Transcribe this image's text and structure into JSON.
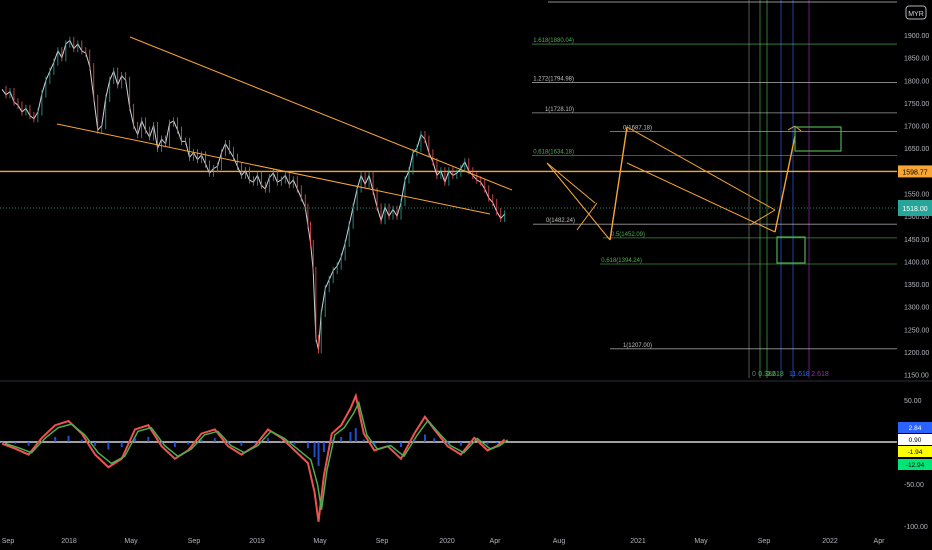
{
  "chart_data": [
    {
      "type": "line",
      "title": "",
      "currency_badge": "MYR",
      "price_axis": {
        "ylim": [
          1135,
          1980
        ],
        "ticks": [
          1150,
          1200,
          1250,
          1300,
          1350,
          1400,
          1450,
          1500,
          1550,
          1600,
          1650,
          1700,
          1750,
          1800,
          1850,
          1900
        ],
        "tick_labels": [
          "1150.00",
          "1200.00",
          "1250.00",
          "1300.00",
          "1350.00",
          "1400.00",
          "1450.00",
          "1500.00",
          "1550.00",
          "1600.00",
          "1650.00",
          "1700.00",
          "1750.00",
          "1800.00",
          "1850.00",
          "1900.00"
        ]
      },
      "time_axis": {
        "labels": [
          "Sep",
          "2018",
          "May",
          "Sep",
          "2019",
          "May",
          "Sep",
          "2020",
          "Apr",
          "Aug",
          "2021",
          "May",
          "Sep",
          "2022",
          "Apr"
        ]
      },
      "series": [
        {
          "values": [
            [
              0,
              1780
            ],
            [
              3,
              1768
            ],
            [
              6,
              1775
            ],
            [
              9,
              1752
            ],
            [
              12,
              1745
            ],
            [
              15,
              1730
            ],
            [
              18,
              1738
            ],
            [
              21,
              1722
            ],
            [
              24,
              1715
            ],
            [
              27,
              1730
            ],
            [
              30,
              1770
            ],
            [
              33,
              1800
            ],
            [
              36,
              1820
            ],
            [
              39,
              1840
            ],
            [
              42,
              1865
            ],
            [
              45,
              1850
            ],
            [
              48,
              1880
            ],
            [
              51,
              1888
            ],
            [
              54,
              1870
            ],
            [
              57,
              1880
            ],
            [
              60,
              1865
            ],
            [
              63,
              1860
            ],
            [
              66,
              1830
            ],
            [
              69,
              1760
            ],
            [
              72,
              1690
            ],
            [
              75,
              1700
            ],
            [
              78,
              1760
            ],
            [
              81,
              1800
            ],
            [
              84,
              1820
            ],
            [
              87,
              1790
            ],
            [
              90,
              1810
            ],
            [
              93,
              1800
            ],
            [
              96,
              1740
            ],
            [
              99,
              1700
            ],
            [
              102,
              1680
            ],
            [
              105,
              1710
            ],
            [
              108,
              1690
            ],
            [
              111,
              1675
            ],
            [
              114,
              1700
            ],
            [
              117,
              1650
            ],
            [
              120,
              1670
            ],
            [
              123,
              1660
            ],
            [
              126,
              1705
            ],
            [
              129,
              1710
            ],
            [
              132,
              1690
            ],
            [
              135,
              1665
            ],
            [
              138,
              1665
            ],
            [
              141,
              1630
            ],
            [
              144,
              1640
            ],
            [
              147,
              1625
            ],
            [
              150,
              1635
            ],
            [
              153,
              1615
            ],
            [
              156,
              1595
            ],
            [
              159,
              1605
            ],
            [
              162,
              1610
            ],
            [
              165,
              1640
            ],
            [
              168,
              1660
            ],
            [
              171,
              1645
            ],
            [
              174,
              1630
            ],
            [
              177,
              1610
            ],
            [
              180,
              1590
            ],
            [
              183,
              1600
            ],
            [
              186,
              1580
            ],
            [
              189,
              1575
            ],
            [
              192,
              1590
            ],
            [
              195,
              1568
            ],
            [
              198,
              1560
            ],
            [
              201,
              1585
            ],
            [
              204,
              1595
            ],
            [
              207,
              1575
            ],
            [
              210,
              1580
            ],
            [
              213,
              1590
            ],
            [
              216,
              1570
            ],
            [
              219,
              1580
            ],
            [
              222,
              1560
            ],
            [
              225,
              1540
            ],
            [
              228,
              1520
            ],
            [
              230,
              1480
            ],
            [
              232,
              1440
            ],
            [
              234,
              1380
            ],
            [
              236,
              1230
            ],
            [
              238,
              1205
            ],
            [
              240,
              1285
            ],
            [
              243,
              1340
            ],
            [
              246,
              1360
            ],
            [
              249,
              1380
            ],
            [
              252,
              1390
            ],
            [
              255,
              1410
            ],
            [
              258,
              1440
            ],
            [
              261,
              1480
            ],
            [
              264,
              1520
            ],
            [
              267,
              1560
            ],
            [
              270,
              1590
            ],
            [
              273,
              1570
            ],
            [
              276,
              1590
            ],
            [
              279,
              1555
            ],
            [
              282,
              1520
            ],
            [
              285,
              1490
            ],
            [
              288,
              1520
            ],
            [
              291,
              1500
            ],
            [
              294,
              1515
            ],
            [
              297,
              1500
            ],
            [
              300,
              1530
            ],
            [
              303,
              1580
            ],
            [
              306,
              1600
            ],
            [
              309,
              1640
            ],
            [
              312,
              1650
            ],
            [
              315,
              1680
            ],
            [
              318,
              1670
            ],
            [
              321,
              1640
            ],
            [
              324,
              1620
            ],
            [
              327,
              1590
            ],
            [
              330,
              1600
            ],
            [
              333,
              1575
            ],
            [
              336,
              1600
            ],
            [
              339,
              1590
            ],
            [
              342,
              1595
            ],
            [
              345,
              1605
            ],
            [
              348,
              1620
            ],
            [
              351,
              1600
            ],
            [
              354,
              1590
            ],
            [
              357,
              1580
            ],
            [
              360,
              1575
            ],
            [
              363,
              1560
            ],
            [
              366,
              1540
            ],
            [
              369,
              1530
            ],
            [
              372,
              1510
            ],
            [
              375,
              1495
            ],
            [
              378,
              1505
            ]
          ]
        }
      ],
      "annotations": {
        "horizontal_line": {
          "label": "1598.77",
          "value": 1598.77
        },
        "current_price": {
          "label": "1518.00",
          "value": 1518
        },
        "fib_retracement": [
          {
            "label": "1.618(1880.04)",
            "value": 1880.04
          },
          {
            "label": "1.272(1794.98)",
            "value": 1794.98
          },
          {
            "label": "1(1728.10)",
            "value": 1728.1
          },
          {
            "label": "0(1687.18)",
            "value": 1687.18
          },
          {
            "label": "0.618(1634.18)",
            "value": 1634.18
          },
          {
            "label": "0(1482.24)",
            "value": 1482.24
          },
          {
            "label": "0.5(1452.09)",
            "value": 1452.09
          },
          {
            "label": "0.618(1394.24)",
            "value": 1394.24
          },
          {
            "label": "1(1207.00)",
            "value": 1207.0
          }
        ],
        "fib_time_zones": [
          "0",
          "0.382",
          "0.618",
          "1",
          "1.618",
          "2.618"
        ]
      }
    },
    {
      "type": "line",
      "title": "",
      "oscillator_axis": {
        "ylim": [
          -110,
          70
        ],
        "ticks": [
          50,
          -50,
          -100
        ],
        "tick_labels": [
          "50.00",
          "-50.00",
          "-100.00"
        ]
      },
      "value_badges": [
        {
          "label": "2.84",
          "value": 2.84,
          "color": "#2962ff"
        },
        {
          "label": "0.90",
          "value": 0.9,
          "color": "#ffffff"
        },
        {
          "label": "-1.94",
          "value": -1.94,
          "color": "#ffff00"
        },
        {
          "label": "-12.94",
          "value": -12.94,
          "color": "#00e676"
        }
      ],
      "series": [
        {
          "values": [
            [
              0,
              -2
            ],
            [
              10,
              -8
            ],
            [
              20,
              -15
            ],
            [
              30,
              5
            ],
            [
              40,
              20
            ],
            [
              50,
              25
            ],
            [
              60,
              10
            ],
            [
              70,
              -15
            ],
            [
              80,
              -30
            ],
            [
              90,
              -20
            ],
            [
              100,
              15
            ],
            [
              110,
              20
            ],
            [
              120,
              -5
            ],
            [
              130,
              -20
            ],
            [
              140,
              -10
            ],
            [
              150,
              10
            ],
            [
              160,
              15
            ],
            [
              170,
              -5
            ],
            [
              180,
              -15
            ],
            [
              190,
              -5
            ],
            [
              200,
              15
            ],
            [
              210,
              5
            ],
            [
              220,
              -10
            ],
            [
              230,
              -25
            ],
            [
              235,
              -60
            ],
            [
              238,
              -95
            ],
            [
              242,
              -40
            ],
            [
              248,
              10
            ],
            [
              255,
              20
            ],
            [
              262,
              40
            ],
            [
              266,
              55
            ],
            [
              272,
              10
            ],
            [
              280,
              -10
            ],
            [
              290,
              -5
            ],
            [
              300,
              -20
            ],
            [
              310,
              10
            ],
            [
              318,
              30
            ],
            [
              325,
              15
            ],
            [
              335,
              -5
            ],
            [
              345,
              -15
            ],
            [
              355,
              5
            ],
            [
              365,
              -10
            ],
            [
              372,
              -5
            ],
            [
              378,
              3
            ]
          ]
        }
      ]
    }
  ]
}
